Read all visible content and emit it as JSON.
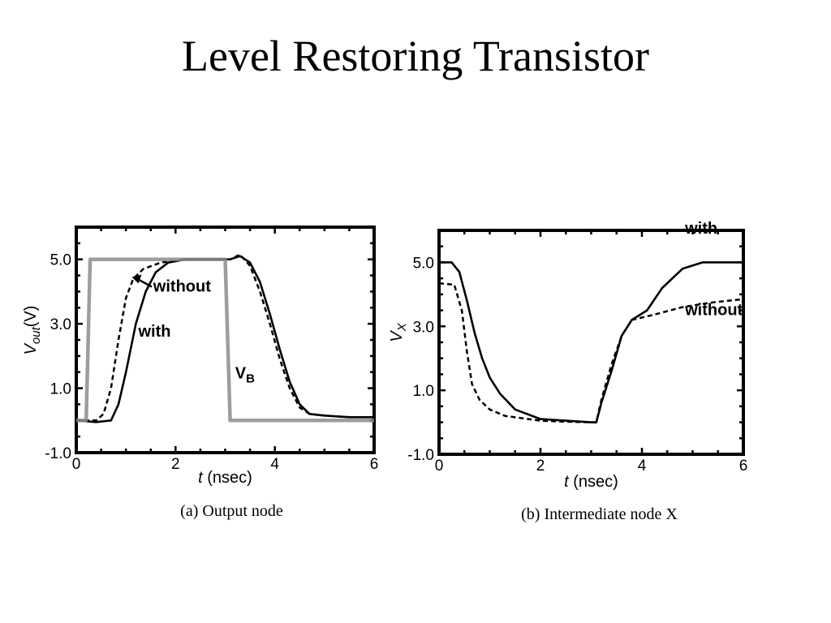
{
  "slide": {
    "title": "Level Restoring Transistor"
  },
  "chart_data": [
    {
      "type": "line",
      "caption": "(a) Output node",
      "xlabel_italic": "t",
      "xlabel_unit": " (nsec)",
      "ylabel_main": "V",
      "ylabel_sub": "out",
      "ylabel_unit": "(V)",
      "xlim": [
        0,
        6
      ],
      "ylim": [
        -1.0,
        6.0
      ],
      "x_ticks": [
        0,
        2,
        4,
        6
      ],
      "x_tick_labels": [
        "0",
        "2",
        "4",
        "6"
      ],
      "y_ticks": [
        -1.0,
        1.0,
        3.0,
        5.0
      ],
      "y_tick_labels": [
        "-1.0",
        "1.0",
        "3.0",
        "5.0"
      ],
      "grid": false,
      "series": [
        {
          "label": "with",
          "style": "solid",
          "color": "#000000",
          "points": [
            [
              0,
              0
            ],
            [
              0.4,
              -0.05
            ],
            [
              0.7,
              0
            ],
            [
              0.85,
              0.5
            ],
            [
              1.0,
              1.5
            ],
            [
              1.2,
              3.0
            ],
            [
              1.4,
              4.0
            ],
            [
              1.6,
              4.6
            ],
            [
              1.85,
              4.9
            ],
            [
              2.2,
              5.0
            ],
            [
              2.7,
              5.0
            ],
            [
              3.1,
              5.0
            ],
            [
              3.3,
              5.1
            ],
            [
              3.5,
              4.9
            ],
            [
              3.7,
              4.3
            ],
            [
              3.9,
              3.3
            ],
            [
              4.1,
              2.2
            ],
            [
              4.3,
              1.2
            ],
            [
              4.5,
              0.5
            ],
            [
              4.7,
              0.2
            ],
            [
              5.0,
              0.15
            ],
            [
              5.5,
              0.1
            ],
            [
              6.0,
              0.1
            ]
          ]
        },
        {
          "label": "without",
          "style": "dashed",
          "color": "#000000",
          "points": [
            [
              0,
              0
            ],
            [
              0.4,
              0
            ],
            [
              0.55,
              0.2
            ],
            [
              0.7,
              1.0
            ],
            [
              0.85,
              2.5
            ],
            [
              1.0,
              3.8
            ],
            [
              1.15,
              4.4
            ],
            [
              1.35,
              4.7
            ],
            [
              1.7,
              4.9
            ],
            [
              2.2,
              5.0
            ],
            [
              2.7,
              5.0
            ],
            [
              3.1,
              5.0
            ],
            [
              3.3,
              5.15
            ],
            [
              3.5,
              4.8
            ],
            [
              3.7,
              4.0
            ],
            [
              3.9,
              3.0
            ],
            [
              4.1,
              1.9
            ],
            [
              4.3,
              1.0
            ],
            [
              4.5,
              0.4
            ],
            [
              4.7,
              0.2
            ],
            [
              5.0,
              0.15
            ],
            [
              5.5,
              0.1
            ],
            [
              6.0,
              0.1
            ]
          ]
        },
        {
          "label": "V",
          "label_sub": "B",
          "style": "thick-gray",
          "color": "#8c8c8c",
          "points": [
            [
              0,
              0
            ],
            [
              0.2,
              0
            ],
            [
              0.28,
              5.0
            ],
            [
              3.0,
              5.0
            ],
            [
              3.1,
              0
            ],
            [
              6.0,
              0
            ]
          ]
        }
      ],
      "annotations": [
        {
          "text": "without",
          "x": 1.55,
          "y": 4.0
        },
        {
          "text": "with",
          "x": 1.25,
          "y": 2.6
        },
        {
          "text": "V",
          "sub": "B",
          "x": 3.2,
          "y": 1.3
        }
      ]
    },
    {
      "type": "line",
      "caption": "(b) Intermediate node X",
      "xlabel_italic": "t",
      "xlabel_unit": " (nsec)",
      "ylabel_main": "V",
      "ylabel_sub": "X",
      "ylabel_unit": "",
      "xlim": [
        0,
        6
      ],
      "ylim": [
        -1.0,
        6.0
      ],
      "x_ticks": [
        0,
        2,
        4,
        6
      ],
      "x_tick_labels": [
        "0",
        "2",
        "4",
        "6"
      ],
      "y_ticks": [
        -1.0,
        1.0,
        3.0,
        5.0
      ],
      "y_tick_labels": [
        "-1.0",
        "1.0",
        "3.0",
        "5.0"
      ],
      "grid": false,
      "series": [
        {
          "label": "with",
          "style": "solid",
          "color": "#000000",
          "points": [
            [
              0,
              5.0
            ],
            [
              0.25,
              5.0
            ],
            [
              0.4,
              4.7
            ],
            [
              0.55,
              3.8
            ],
            [
              0.7,
              2.8
            ],
            [
              0.85,
              2.0
            ],
            [
              1.0,
              1.4
            ],
            [
              1.2,
              0.9
            ],
            [
              1.5,
              0.4
            ],
            [
              2.0,
              0.1
            ],
            [
              2.5,
              0.05
            ],
            [
              3.0,
              0
            ],
            [
              3.1,
              0
            ],
            [
              3.2,
              0.6
            ],
            [
              3.4,
              1.6
            ],
            [
              3.6,
              2.7
            ],
            [
              3.8,
              3.2
            ],
            [
              4.1,
              3.5
            ],
            [
              4.4,
              4.2
            ],
            [
              4.8,
              4.8
            ],
            [
              5.2,
              5.0
            ],
            [
              6.0,
              5.0
            ]
          ]
        },
        {
          "label": "without",
          "style": "dashed",
          "color": "#000000",
          "points": [
            [
              0,
              4.35
            ],
            [
              0.3,
              4.3
            ],
            [
              0.45,
              3.5
            ],
            [
              0.55,
              2.2
            ],
            [
              0.65,
              1.2
            ],
            [
              0.8,
              0.7
            ],
            [
              1.0,
              0.4
            ],
            [
              1.3,
              0.2
            ],
            [
              2.0,
              0.05
            ],
            [
              2.5,
              0.02
            ],
            [
              3.0,
              0
            ],
            [
              3.1,
              0
            ],
            [
              3.2,
              0.7
            ],
            [
              3.4,
              1.8
            ],
            [
              3.6,
              2.7
            ],
            [
              3.8,
              3.2
            ],
            [
              4.2,
              3.35
            ],
            [
              4.8,
              3.6
            ],
            [
              5.4,
              3.75
            ],
            [
              6.0,
              3.85
            ]
          ]
        }
      ],
      "annotations": [
        {
          "text": "with",
          "x": 4.85,
          "y": 5.9
        },
        {
          "text": "without",
          "x": 4.85,
          "y": 3.35
        }
      ]
    }
  ]
}
